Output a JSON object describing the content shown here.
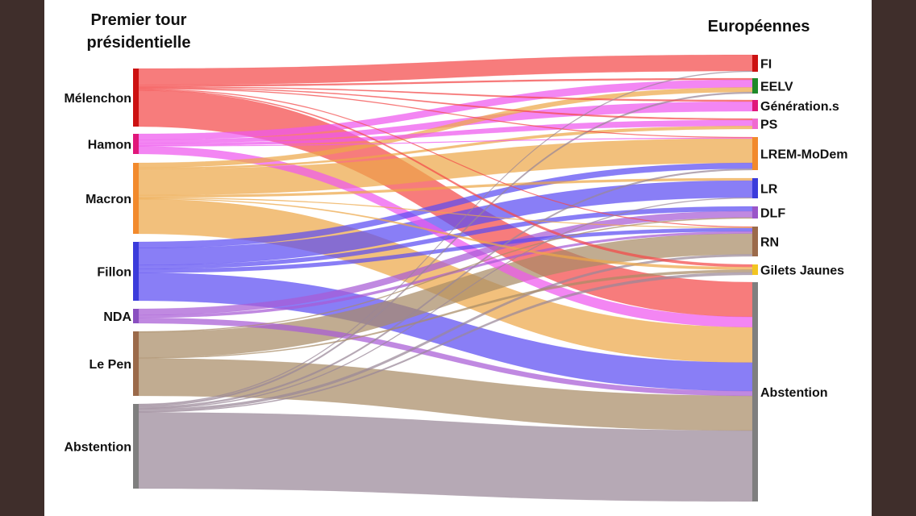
{
  "headers": {
    "left_line1": "Premier tour",
    "left_line2": "présidentielle",
    "right": "Européennes"
  },
  "left_nodes": [
    {
      "id": "melenchon",
      "label": "Mélenchon",
      "color": "#cc1111"
    },
    {
      "id": "hamon",
      "label": "Hamon",
      "color": "#e0177a"
    },
    {
      "id": "macron",
      "label": "Macron",
      "color": "#f28a2c"
    },
    {
      "id": "fillon",
      "label": "Fillon",
      "color": "#3b3bdb"
    },
    {
      "id": "nda",
      "label": "NDA",
      "color": "#8a4fc0"
    },
    {
      "id": "lepen",
      "label": "Le Pen",
      "color": "#9b6a4a"
    },
    {
      "id": "abstention_l",
      "label": "Abstention",
      "color": "#7f7f7f"
    }
  ],
  "right_nodes": [
    {
      "id": "fi",
      "label": "FI",
      "color": "#cc1111"
    },
    {
      "id": "eelv",
      "label": "EELV",
      "color": "#1f8a2a"
    },
    {
      "id": "generations",
      "label": "Génération.s",
      "color": "#e0177a"
    },
    {
      "id": "ps",
      "label": "PS",
      "color": "#f06bd0"
    },
    {
      "id": "lrem",
      "label": "LREM-MoDem",
      "color": "#f28a2c"
    },
    {
      "id": "lr",
      "label": "LR",
      "color": "#3b3bdb"
    },
    {
      "id": "dlf",
      "label": "DLF",
      "color": "#9a55c8"
    },
    {
      "id": "rn",
      "label": "RN",
      "color": "#9b6a4a"
    },
    {
      "id": "gj",
      "label": "Gilets Jaunes",
      "color": "#f2c521"
    },
    {
      "id": "abstention_r",
      "label": "Abstention",
      "color": "#7f7f7f"
    }
  ],
  "link_colors": {
    "melenchon": "#f44a4a",
    "hamon": "#ee58ee",
    "macron": "#eda84a",
    "fillon": "#5c4cf2",
    "nda": "#a85cd6",
    "lepen": "#a98c66",
    "abstention_l": "#9a8898"
  },
  "flows": [
    {
      "source": "melenchon",
      "target": "fi",
      "value": 20
    },
    {
      "source": "melenchon",
      "target": "eelv",
      "value": 2
    },
    {
      "source": "melenchon",
      "target": "generations",
      "value": 1
    },
    {
      "source": "melenchon",
      "target": "ps",
      "value": 1
    },
    {
      "source": "melenchon",
      "target": "lrem",
      "value": 1
    },
    {
      "source": "melenchon",
      "target": "rn",
      "value": 1
    },
    {
      "source": "melenchon",
      "target": "gj",
      "value": 1
    },
    {
      "source": "melenchon",
      "target": "abstention_r",
      "value": 44
    },
    {
      "source": "hamon",
      "target": "eelv",
      "value": 10
    },
    {
      "source": "hamon",
      "target": "generations",
      "value": 6
    },
    {
      "source": "hamon",
      "target": "ps",
      "value": 4
    },
    {
      "source": "hamon",
      "target": "lrem",
      "value": 1
    },
    {
      "source": "hamon",
      "target": "abstention_r",
      "value": 13
    },
    {
      "source": "macron",
      "target": "eelv",
      "value": 6
    },
    {
      "source": "macron",
      "target": "ps",
      "value": 2
    },
    {
      "source": "macron",
      "target": "lrem",
      "value": 34
    },
    {
      "source": "macron",
      "target": "lr",
      "value": 3
    },
    {
      "source": "macron",
      "target": "rn",
      "value": 1
    },
    {
      "source": "macron",
      "target": "gj",
      "value": 1
    },
    {
      "source": "macron",
      "target": "abstention_r",
      "value": 45
    },
    {
      "source": "fillon",
      "target": "lrem",
      "value": 8
    },
    {
      "source": "fillon",
      "target": "lr",
      "value": 22
    },
    {
      "source": "fillon",
      "target": "dlf",
      "value": 5
    },
    {
      "source": "fillon",
      "target": "rn",
      "value": 5
    },
    {
      "source": "fillon",
      "target": "abstention_r",
      "value": 36
    },
    {
      "source": "nda",
      "target": "dlf",
      "value": 7
    },
    {
      "source": "nda",
      "target": "rn",
      "value": 3
    },
    {
      "source": "nda",
      "target": "abstention_r",
      "value": 6
    },
    {
      "source": "lepen",
      "target": "rn",
      "value": 30
    },
    {
      "source": "lepen",
      "target": "dlf",
      "value": 1
    },
    {
      "source": "lepen",
      "target": "gj",
      "value": 1
    },
    {
      "source": "lepen",
      "target": "abstention_r",
      "value": 44
    },
    {
      "source": "abstention_l",
      "target": "fi",
      "value": 1
    },
    {
      "source": "abstention_l",
      "target": "eelv",
      "value": 2
    },
    {
      "source": "abstention_l",
      "target": "lrem",
      "value": 2
    },
    {
      "source": "abstention_l",
      "target": "lr",
      "value": 1
    },
    {
      "source": "abstention_l",
      "target": "rn",
      "value": 3
    },
    {
      "source": "abstention_l",
      "target": "gj",
      "value": 1
    },
    {
      "source": "abstention_l",
      "target": "abstention_r",
      "value": 90
    }
  ]
}
